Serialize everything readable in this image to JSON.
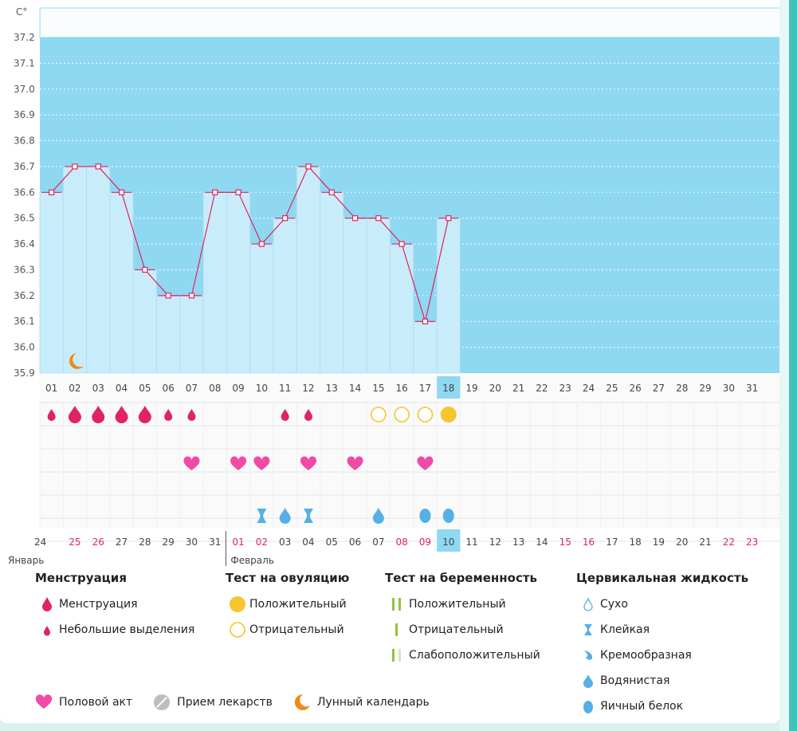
{
  "chart_data": {
    "type": "bar",
    "title": "",
    "ylabel": "C°",
    "ylim": [
      35.9,
      37.2
    ],
    "yticks": [
      "35.9",
      "36.0",
      "36.1",
      "36.2",
      "36.3",
      "36.4",
      "36.5",
      "36.6",
      "36.7",
      "36.8",
      "36.9",
      "37.0",
      "37.1",
      "37.2"
    ],
    "cycle_days": [
      "01",
      "02",
      "03",
      "04",
      "05",
      "06",
      "07",
      "08",
      "09",
      "10",
      "11",
      "12",
      "13",
      "14",
      "15",
      "16",
      "17",
      "18",
      "19",
      "20",
      "21",
      "22",
      "23",
      "24",
      "25",
      "26",
      "27",
      "28",
      "29",
      "30",
      "31"
    ],
    "current_day": "18",
    "temperatures": [
      36.6,
      36.7,
      36.7,
      36.6,
      36.3,
      36.2,
      36.2,
      36.6,
      36.6,
      36.4,
      36.5,
      36.7,
      36.6,
      36.5,
      36.5,
      36.4,
      36.1,
      36.5
    ],
    "dates": [
      "24",
      "25",
      "26",
      "27",
      "28",
      "29",
      "30",
      "31",
      "01",
      "02",
      "03",
      "04",
      "05",
      "06",
      "07",
      "08",
      "09",
      "10",
      "11",
      "12",
      "13",
      "14",
      "15",
      "16",
      "17",
      "18",
      "19",
      "20",
      "21",
      "22",
      "23"
    ],
    "weekend_date_indices": [
      1,
      2,
      8,
      9,
      15,
      16,
      22,
      23,
      29,
      30
    ],
    "today_date_index": 17,
    "months": [
      "Январь",
      "Февраль"
    ],
    "moon_day_index": 1,
    "menstruation": [
      {
        "day": 0,
        "kind": "small"
      },
      {
        "day": 1,
        "kind": "big"
      },
      {
        "day": 2,
        "kind": "big"
      },
      {
        "day": 3,
        "kind": "big"
      },
      {
        "day": 4,
        "kind": "big"
      },
      {
        "day": 5,
        "kind": "small"
      },
      {
        "day": 6,
        "kind": "small"
      },
      {
        "day": 10,
        "kind": "small"
      },
      {
        "day": 11,
        "kind": "small"
      }
    ],
    "ovulation_tests": [
      {
        "day": 14,
        "result": "negative"
      },
      {
        "day": 15,
        "result": "negative"
      },
      {
        "day": 16,
        "result": "negative"
      },
      {
        "day": 17,
        "result": "positive"
      }
    ],
    "intercourse_days": [
      6,
      8,
      9,
      11,
      13,
      16
    ],
    "cervical_fluid": [
      {
        "day": 9,
        "kind": "sticky"
      },
      {
        "day": 10,
        "kind": "watery"
      },
      {
        "day": 11,
        "kind": "sticky"
      },
      {
        "day": 14,
        "kind": "watery"
      },
      {
        "day": 16,
        "kind": "eggwhite"
      },
      {
        "day": 17,
        "kind": "eggwhite"
      }
    ],
    "colors": {
      "sky": "#8fd8f2",
      "bar": "#c9ecfa",
      "line": "#e0245e",
      "red": "#e0245e",
      "pink": "#f04aa6",
      "yellow": "#f7c52d",
      "blue": "#54b0e6",
      "green": "#8cc63f",
      "orange": "#f08a17"
    }
  },
  "legend": {
    "menstruation": {
      "title": "Менструация",
      "items": [
        "Менструация",
        "Небольшие выделения"
      ]
    },
    "ovulation": {
      "title": "Тест на овуляцию",
      "items": [
        "Положительный",
        "Отрицательный"
      ]
    },
    "pregnancy": {
      "title": "Тест на беременность",
      "items": [
        "Положительный",
        "Отрицательный",
        "Слабоположительный"
      ]
    },
    "cervical": {
      "title": "Цервикальная жидкость",
      "items": [
        "Сухо",
        "Клейкая",
        "Кремообразная",
        "Водянистая",
        "Яичный белок"
      ]
    },
    "bottom": {
      "intercourse": "Половой акт",
      "medication": "Прием лекарств",
      "lunar": "Лунный календарь"
    }
  }
}
